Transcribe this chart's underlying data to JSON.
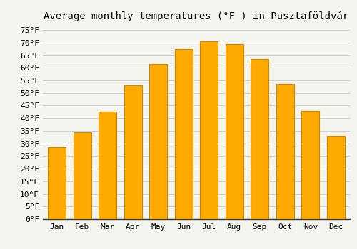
{
  "title": "Average monthly temperatures (°F ) in Pusztaföldvár",
  "months": [
    "Jan",
    "Feb",
    "Mar",
    "Apr",
    "May",
    "Jun",
    "Jul",
    "Aug",
    "Sep",
    "Oct",
    "Nov",
    "Dec"
  ],
  "values": [
    28.5,
    34.5,
    42.5,
    53.0,
    61.5,
    67.5,
    70.5,
    69.5,
    63.5,
    53.5,
    43.0,
    33.0
  ],
  "bar_color": "#FFAA00",
  "bar_edge_color": "#CC8800",
  "ylim": [
    0,
    77
  ],
  "yticks": [
    0,
    5,
    10,
    15,
    20,
    25,
    30,
    35,
    40,
    45,
    50,
    55,
    60,
    65,
    70,
    75
  ],
  "background_color": "#f5f5f0",
  "grid_color": "#cccccc",
  "title_fontsize": 10,
  "tick_fontsize": 8,
  "font_family": "monospace"
}
